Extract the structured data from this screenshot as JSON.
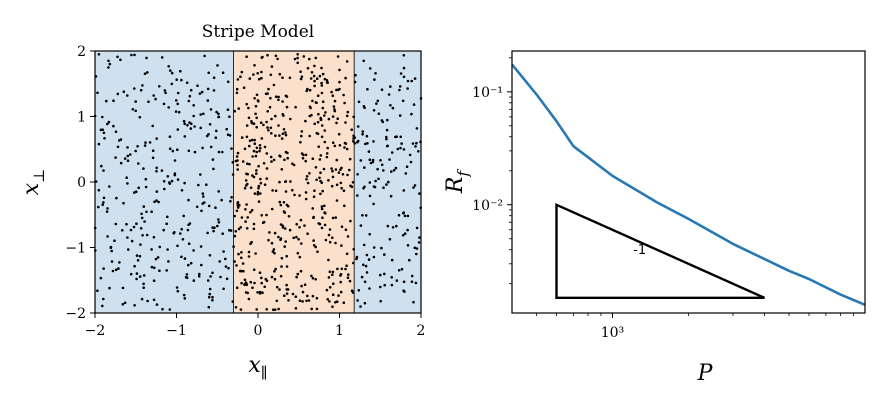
{
  "chart_data": [
    {
      "type": "scatter",
      "title": "Stripe Model",
      "xlabel": "x_∥",
      "ylabel": "x_⊥",
      "xlim": [
        -2,
        2
      ],
      "ylim": [
        -2,
        2
      ],
      "xticks": [
        -2,
        -1,
        0,
        1,
        2
      ],
      "yticks": [
        -2,
        -1,
        0,
        1,
        2
      ],
      "xtick_labels": [
        "−2",
        "−1",
        "0",
        "1",
        "2"
      ],
      "ytick_labels": [
        "−2",
        "−1",
        "0",
        "1",
        "2"
      ],
      "regions": [
        {
          "x0": -2.0,
          "x1": -0.3,
          "color": "#cfe0ee"
        },
        {
          "x0": -0.3,
          "x1": 1.18,
          "color": "#fbe0cb"
        },
        {
          "x0": 1.18,
          "x1": 2.0,
          "color": "#cfe0ee"
        }
      ],
      "grid": false,
      "point_color": "#000000",
      "n_points": 1000,
      "point_seed": 7
    },
    {
      "type": "line",
      "xlabel": "P",
      "ylabel": "R_f",
      "xscale": "log",
      "yscale": "log",
      "xlim": [
        400,
        10000
      ],
      "ylim": [
        0.0011,
        0.23
      ],
      "xticks": [
        1000
      ],
      "xtick_labels": [
        "10³"
      ],
      "yticks": [
        0.01,
        0.1
      ],
      "ytick_labels": [
        "10⁻²",
        "10⁻¹"
      ],
      "grid": false,
      "line_color": "#2878b5",
      "series": [
        {
          "x": [
            400,
            500,
            600,
            700,
            1000,
            1500,
            2000,
            3000,
            5000,
            6000,
            8000,
            10000
          ],
          "values": [
            0.175,
            0.095,
            0.055,
            0.033,
            0.018,
            0.0105,
            0.0075,
            0.0045,
            0.0026,
            0.0022,
            0.0016,
            0.0013
          ]
        }
      ],
      "slope_triangle": {
        "label": "-1",
        "points": [
          [
            600,
            0.01
          ],
          [
            600,
            0.0015
          ],
          [
            4000,
            0.0015
          ]
        ]
      }
    }
  ]
}
